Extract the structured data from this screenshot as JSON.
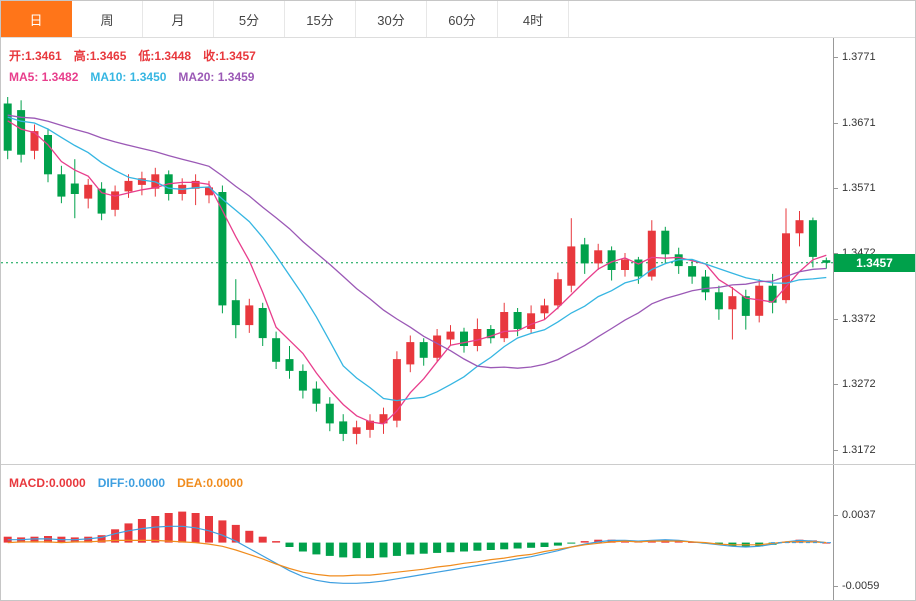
{
  "tabs": [
    {
      "label": "日",
      "active": true
    },
    {
      "label": "周",
      "active": false
    },
    {
      "label": "月",
      "active": false
    },
    {
      "label": "5分",
      "active": false
    },
    {
      "label": "15分",
      "active": false
    },
    {
      "label": "30分",
      "active": false
    },
    {
      "label": "60分",
      "active": false
    },
    {
      "label": "4时",
      "active": false
    }
  ],
  "legend": {
    "open": "开:1.3461",
    "high": "高:1.3465",
    "low": "低:1.3448",
    "close": "收:1.3457",
    "ma5": "MA5: 1.3482",
    "ma10": "MA10: 1.3450",
    "ma20": "MA20: 1.3459"
  },
  "macd_legend": {
    "macd": "MACD:0.0000",
    "diff": "DIFF:0.0000",
    "dea": "DEA:0.0000"
  },
  "price_badge": "1.3457",
  "colors": {
    "up": "#e8383d",
    "down": "#00a14b",
    "ma5": "#e83e8c",
    "ma10": "#36b6e2",
    "ma20": "#9b59b6",
    "diff": "#3e9fe0",
    "dea": "#f08c1e",
    "badge_bg": "#00a14b",
    "tab_active_bg": "#ff7519",
    "axis_text": "#333333"
  },
  "chart_data": [
    {
      "type": "candlestick",
      "panel": "price",
      "y_axis_labels": [
        1.3771,
        1.3671,
        1.3571,
        1.3472,
        1.3372,
        1.3272,
        1.3172
      ],
      "y_range": [
        1.315,
        1.38
      ],
      "last_price": 1.3457,
      "prehistory_close": 1.3685,
      "ma_periods": [
        5,
        10,
        20
      ],
      "ohlc_last": {
        "open": 1.3461,
        "high": 1.3465,
        "low": 1.3448,
        "close": 1.3457
      },
      "ma_last": {
        "ma5": 1.3482,
        "ma10": 1.345,
        "ma20": 1.3459
      },
      "candles": [
        [
          1.37,
          1.371,
          1.3615,
          1.3628
        ],
        [
          1.369,
          1.3705,
          1.361,
          1.3622
        ],
        [
          1.3628,
          1.3668,
          1.3615,
          1.3658
        ],
        [
          1.3652,
          1.3662,
          1.358,
          1.3592
        ],
        [
          1.3592,
          1.3605,
          1.3548,
          1.3558
        ],
        [
          1.3578,
          1.3615,
          1.3525,
          1.3562
        ],
        [
          1.3555,
          1.3585,
          1.354,
          1.3576
        ],
        [
          1.357,
          1.358,
          1.3522,
          1.3532
        ],
        [
          1.3538,
          1.3575,
          1.3528,
          1.3566
        ],
        [
          1.3566,
          1.3592,
          1.3556,
          1.3582
        ],
        [
          1.3576,
          1.3596,
          1.356,
          1.3586
        ],
        [
          1.357,
          1.3602,
          1.3558,
          1.3592
        ],
        [
          1.3592,
          1.3598,
          1.3552,
          1.3562
        ],
        [
          1.3562,
          1.3586,
          1.3552,
          1.3576
        ],
        [
          1.357,
          1.3592,
          1.3545,
          1.3582
        ],
        [
          1.356,
          1.3582,
          1.3548,
          1.3572
        ],
        [
          1.3565,
          1.3575,
          1.338,
          1.3392
        ],
        [
          1.34,
          1.3432,
          1.3342,
          1.3362
        ],
        [
          1.3362,
          1.3402,
          1.335,
          1.3392
        ],
        [
          1.3388,
          1.3396,
          1.333,
          1.3342
        ],
        [
          1.3342,
          1.3352,
          1.3295,
          1.3306
        ],
        [
          1.331,
          1.333,
          1.328,
          1.3292
        ],
        [
          1.3292,
          1.3302,
          1.325,
          1.3262
        ],
        [
          1.3265,
          1.3276,
          1.323,
          1.3242
        ],
        [
          1.3242,
          1.3252,
          1.32,
          1.3212
        ],
        [
          1.3215,
          1.3226,
          1.3185,
          1.3196
        ],
        [
          1.3196,
          1.3216,
          1.318,
          1.3206
        ],
        [
          1.3202,
          1.3226,
          1.319,
          1.3216
        ],
        [
          1.3212,
          1.3236,
          1.3196,
          1.3226
        ],
        [
          1.3216,
          1.3322,
          1.3206,
          1.331
        ],
        [
          1.3302,
          1.3346,
          1.329,
          1.3336
        ],
        [
          1.3336,
          1.3342,
          1.33,
          1.3312
        ],
        [
          1.3312,
          1.3356,
          1.3306,
          1.3346
        ],
        [
          1.334,
          1.3362,
          1.333,
          1.3352
        ],
        [
          1.3352,
          1.3358,
          1.332,
          1.333
        ],
        [
          1.333,
          1.3372,
          1.3322,
          1.3356
        ],
        [
          1.3356,
          1.3362,
          1.3334,
          1.3342
        ],
        [
          1.3342,
          1.3396,
          1.3336,
          1.3382
        ],
        [
          1.3382,
          1.3388,
          1.3345,
          1.3356
        ],
        [
          1.3356,
          1.3392,
          1.335,
          1.338
        ],
        [
          1.338,
          1.3402,
          1.337,
          1.3392
        ],
        [
          1.3392,
          1.3442,
          1.3386,
          1.3432
        ],
        [
          1.3422,
          1.3525,
          1.3412,
          1.3482
        ],
        [
          1.3485,
          1.3495,
          1.344,
          1.3456
        ],
        [
          1.3456,
          1.3486,
          1.3446,
          1.3476
        ],
        [
          1.3476,
          1.3482,
          1.343,
          1.3446
        ],
        [
          1.3446,
          1.3472,
          1.3436,
          1.3462
        ],
        [
          1.3462,
          1.3466,
          1.3425,
          1.3436
        ],
        [
          1.3436,
          1.3522,
          1.343,
          1.3506
        ],
        [
          1.3506,
          1.3512,
          1.3455,
          1.347
        ],
        [
          1.347,
          1.348,
          1.344,
          1.3452
        ],
        [
          1.3452,
          1.3462,
          1.3425,
          1.3436
        ],
        [
          1.3436,
          1.3446,
          1.34,
          1.3412
        ],
        [
          1.3412,
          1.3422,
          1.337,
          1.3386
        ],
        [
          1.3386,
          1.342,
          1.334,
          1.3406
        ],
        [
          1.3406,
          1.3416,
          1.3355,
          1.3376
        ],
        [
          1.3376,
          1.3432,
          1.3366,
          1.3422
        ],
        [
          1.3422,
          1.344,
          1.338,
          1.3396
        ],
        [
          1.34,
          1.354,
          1.3395,
          1.3502
        ],
        [
          1.3502,
          1.3536,
          1.3482,
          1.3522
        ],
        [
          1.3522,
          1.3526,
          1.345,
          1.3466
        ],
        [
          1.3461,
          1.3465,
          1.3448,
          1.3457
        ]
      ]
    },
    {
      "type": "bar",
      "panel": "macd",
      "y_axis_labels": [
        0.0037,
        -0.0059
      ],
      "y_range": [
        -0.0079,
        0.0105
      ],
      "last": {
        "macd": 0,
        "diff": 0,
        "dea": 0
      },
      "hist": [
        0.0008,
        0.0007,
        0.0008,
        0.0009,
        0.0008,
        0.0007,
        0.0008,
        0.001,
        0.0018,
        0.0026,
        0.0032,
        0.0036,
        0.004,
        0.0042,
        0.004,
        0.0036,
        0.003,
        0.0024,
        0.0016,
        0.0008,
        0.0002,
        -0.0006,
        -0.0012,
        -0.0016,
        -0.0018,
        -0.002,
        -0.0021,
        -0.0021,
        -0.002,
        -0.0018,
        -0.0016,
        -0.0015,
        -0.0014,
        -0.0013,
        -0.0012,
        -0.0011,
        -0.001,
        -0.0009,
        -0.0008,
        -0.0007,
        -0.0006,
        -0.0004,
        -0.0001,
        0.0002,
        0.0004,
        0.0004,
        0.0003,
        0.0002,
        0.0003,
        0.0004,
        0.0003,
        0.0001,
        -0.0001,
        -0.0003,
        -0.0005,
        -0.0006,
        -0.0005,
        -0.0003,
        0.0001,
        0.0004,
        0.0003,
        0.0
      ],
      "diff": [
        0.0004,
        0.0004,
        0.0005,
        0.0005,
        0.0004,
        0.0004,
        0.0005,
        0.0007,
        0.0012,
        0.0016,
        0.0019,
        0.0021,
        0.0022,
        0.0022,
        0.002,
        0.0016,
        0.001,
        0.0002,
        -0.0008,
        -0.0018,
        -0.0028,
        -0.0038,
        -0.0046,
        -0.0051,
        -0.0054,
        -0.0055,
        -0.0055,
        -0.0054,
        -0.0052,
        -0.0049,
        -0.0046,
        -0.0043,
        -0.004,
        -0.0037,
        -0.0034,
        -0.0031,
        -0.0028,
        -0.0025,
        -0.0022,
        -0.0019,
        -0.0015,
        -0.0011,
        -0.0006,
        -0.0002,
        0.0001,
        0.0003,
        0.0003,
        0.0002,
        0.0003,
        0.0004,
        0.0003,
        0.0001,
        -0.0001,
        -0.0003,
        -0.0005,
        -0.0006,
        -0.0005,
        -0.0002,
        0.0001,
        0.0003,
        0.0002,
        0.0
      ],
      "dea": [
        0.0,
        0.0001,
        0.0001,
        0.0001,
        0.0,
        0.0001,
        0.0001,
        0.0002,
        0.0003,
        0.0003,
        0.0003,
        0.0003,
        0.0002,
        0.0001,
        0.0,
        -0.0002,
        -0.0005,
        -0.001,
        -0.0016,
        -0.0022,
        -0.0029,
        -0.0035,
        -0.004,
        -0.0043,
        -0.0045,
        -0.0045,
        -0.0044,
        -0.0044,
        -0.0042,
        -0.004,
        -0.0038,
        -0.0036,
        -0.0033,
        -0.0031,
        -0.0028,
        -0.0026,
        -0.0023,
        -0.0021,
        -0.0018,
        -0.0016,
        -0.0012,
        -0.0009,
        -0.0006,
        -0.0003,
        -0.0001,
        0.0001,
        0.0002,
        0.0001,
        0.0002,
        0.0002,
        0.0002,
        0.0001,
        0.0,
        -0.0002,
        -0.0003,
        -0.0003,
        -0.0003,
        -0.0001,
        0.0001,
        0.0001,
        0.0001,
        0.0
      ]
    }
  ]
}
